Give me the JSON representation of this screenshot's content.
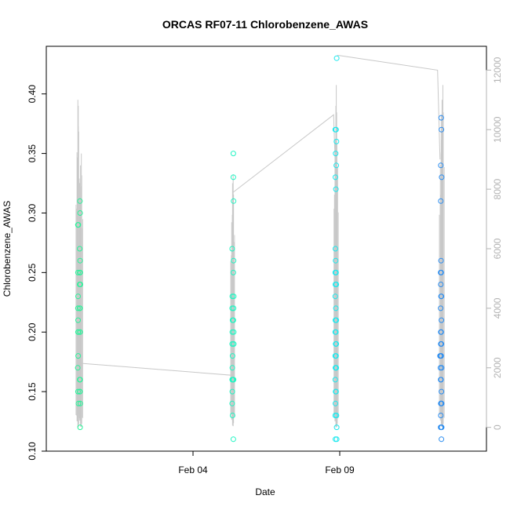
{
  "chart_data": {
    "type": "scatter",
    "title": "ORCAS RF07-11 Chlorobenzene_AWAS",
    "xlabel": "Date",
    "ylabel": "Chlorobenzene_AWAS",
    "x_type": "date",
    "xlim": [
      "2016-01-30",
      "2016-02-14"
    ],
    "x_ticks": [
      {
        "value": "2016-02-04",
        "label": "Feb 04"
      },
      {
        "value": "2016-02-09",
        "label": "Feb 09"
      }
    ],
    "ylim": [
      0.1,
      0.44
    ],
    "y_ticks": [
      {
        "value": 0.1,
        "label": "0.10"
      },
      {
        "value": 0.15,
        "label": "0.15"
      },
      {
        "value": 0.2,
        "label": "0.20"
      },
      {
        "value": 0.25,
        "label": "0.25"
      },
      {
        "value": 0.3,
        "label": "0.30"
      },
      {
        "value": 0.35,
        "label": "0.35"
      },
      {
        "value": 0.4,
        "label": "0.40"
      }
    ],
    "y2lim": [
      -800,
      12800
    ],
    "y2_ticks": [
      {
        "value": 0,
        "label": "0"
      },
      {
        "value": 2000,
        "label": "2000"
      },
      {
        "value": 4000,
        "label": "4000"
      },
      {
        "value": 6000,
        "label": "6000"
      },
      {
        "value": 8000,
        "label": "8000"
      },
      {
        "value": 10000,
        "label": "10000"
      },
      {
        "value": 12000,
        "label": "12000"
      }
    ],
    "grid": false,
    "colors": {
      "flight_track": "#c8c8c8",
      "axis": "#000000",
      "right_axis": "#b3b3b3"
    },
    "flights": [
      {
        "color": "#29f39a",
        "altitude_spikes": [
          [
            "2016-01-31T01:50",
            11000,
            12
          ],
          [
            "2016-01-31T02:10",
            10800,
            0
          ],
          [
            "2016-01-31T04:00",
            8800,
            25
          ],
          [
            "2016-01-31T04:40",
            9200,
            15
          ]
        ],
        "altitude_track": [
          [
            "2016-01-31T05:00",
            2150
          ],
          [
            "2016-02-05T08:00",
            1750
          ],
          [
            "2016-02-05T08:20",
            1800
          ]
        ],
        "points": [
          [
            "2016-01-31T01:50",
            0.29
          ],
          [
            "2016-01-31T01:55",
            0.25
          ],
          [
            "2016-01-31T01:50",
            0.22
          ],
          [
            "2016-01-31T02:00",
            0.21
          ],
          [
            "2016-01-31T01:55",
            0.2
          ],
          [
            "2016-01-31T02:05",
            0.18
          ],
          [
            "2016-01-31T01:45",
            0.17
          ],
          [
            "2016-01-31T01:55",
            0.15
          ],
          [
            "2016-01-31T02:10",
            0.29
          ],
          [
            "2016-01-31T02:00",
            0.23
          ],
          [
            "2016-01-31T02:10",
            0.2
          ],
          [
            "2016-01-31T02:20",
            0.14
          ],
          [
            "2016-01-31T03:30",
            0.31
          ],
          [
            "2016-01-31T03:40",
            0.3
          ],
          [
            "2016-01-31T03:20",
            0.27
          ],
          [
            "2016-01-31T03:40",
            0.26
          ],
          [
            "2016-01-31T03:25",
            0.25
          ],
          [
            "2016-01-31T03:45",
            0.25
          ],
          [
            "2016-01-31T03:20",
            0.24
          ],
          [
            "2016-01-31T03:50",
            0.24
          ],
          [
            "2016-01-31T03:20",
            0.22
          ],
          [
            "2016-01-31T03:35",
            0.22
          ],
          [
            "2016-01-31T03:30",
            0.2
          ],
          [
            "2016-01-31T03:45",
            0.2
          ],
          [
            "2016-01-31T03:20",
            0.16
          ],
          [
            "2016-01-31T03:40",
            0.16
          ],
          [
            "2016-01-31T03:30",
            0.15
          ],
          [
            "2016-01-31T03:25",
            0.15
          ],
          [
            "2016-01-31T03:50",
            0.14
          ],
          [
            "2016-01-31T03:40",
            0.12
          ]
        ]
      },
      {
        "color": "#22f5c3",
        "altitude_spikes": [
          [
            "2016-02-05T08:20",
            8200,
            60
          ],
          [
            "2016-02-05T08:50",
            8500,
            40
          ]
        ],
        "altitude_track": [
          [
            "2016-02-05T09:00",
            7900
          ],
          [
            "2016-02-08T19:00",
            10500
          ],
          [
            "2016-02-08T21:00",
            8000
          ]
        ],
        "points": [
          [
            "2016-02-05T08:00",
            0.27
          ],
          [
            "2016-02-05T08:10",
            0.23
          ],
          [
            "2016-02-05T08:00",
            0.22
          ],
          [
            "2016-02-05T08:20",
            0.21
          ],
          [
            "2016-02-05T08:10",
            0.2
          ],
          [
            "2016-02-05T08:00",
            0.19
          ],
          [
            "2016-02-05T08:20",
            0.18
          ],
          [
            "2016-02-05T08:10",
            0.17
          ],
          [
            "2016-02-05T08:00",
            0.16
          ],
          [
            "2016-02-05T08:30",
            0.16
          ],
          [
            "2016-02-05T08:10",
            0.15
          ],
          [
            "2016-02-05T08:00",
            0.14
          ],
          [
            "2016-02-05T08:20",
            0.13
          ],
          [
            "2016-02-05T09:00",
            0.35
          ],
          [
            "2016-02-05T09:00",
            0.33
          ],
          [
            "2016-02-05T09:10",
            0.31
          ],
          [
            "2016-02-05T09:10",
            0.26
          ],
          [
            "2016-02-05T09:00",
            0.25
          ],
          [
            "2016-02-05T09:20",
            0.23
          ],
          [
            "2016-02-05T09:10",
            0.22
          ],
          [
            "2016-02-05T09:00",
            0.21
          ],
          [
            "2016-02-05T09:20",
            0.2
          ],
          [
            "2016-02-05T09:10",
            0.19
          ],
          [
            "2016-02-05T09:20",
            0.19
          ],
          [
            "2016-02-05T09:00",
            0.16
          ],
          [
            "2016-02-05T09:10",
            0.16
          ],
          [
            "2016-02-05T09:00",
            0.11
          ]
        ]
      },
      {
        "color": "#1ce8ee",
        "altitude_spikes": [
          [
            "2016-02-08T20:50",
            10800,
            0
          ],
          [
            "2016-02-08T21:10",
            11500,
            10
          ],
          [
            "2016-02-08T21:40",
            9500,
            20
          ]
        ],
        "altitude_track": [
          [
            "2016-02-08T22:00",
            12500
          ],
          [
            "2016-02-12T08:00",
            12000
          ],
          [
            "2016-02-12T10:00",
            9000
          ]
        ],
        "points": [
          [
            "2016-02-08T21:30",
            0.43
          ],
          [
            "2016-02-08T20:20",
            0.37
          ],
          [
            "2016-02-08T21:00",
            0.37
          ],
          [
            "2016-02-08T20:40",
            0.35
          ],
          [
            "2016-02-08T21:20",
            0.36
          ],
          [
            "2016-02-08T21:10",
            0.34
          ],
          [
            "2016-02-08T20:30",
            0.33
          ],
          [
            "2016-02-08T20:50",
            0.32
          ],
          [
            "2016-02-08T20:30",
            0.27
          ],
          [
            "2016-02-08T20:40",
            0.26
          ],
          [
            "2016-02-08T20:20",
            0.25
          ],
          [
            "2016-02-08T21:00",
            0.25
          ],
          [
            "2016-02-08T20:30",
            0.24
          ],
          [
            "2016-02-08T21:10",
            0.24
          ],
          [
            "2016-02-08T20:20",
            0.23
          ],
          [
            "2016-02-08T20:50",
            0.22
          ],
          [
            "2016-02-08T20:30",
            0.21
          ],
          [
            "2016-02-08T21:10",
            0.21
          ],
          [
            "2016-02-08T20:20",
            0.2
          ],
          [
            "2016-02-08T20:50",
            0.2
          ],
          [
            "2016-02-08T20:40",
            0.19
          ],
          [
            "2016-02-08T21:10",
            0.19
          ],
          [
            "2016-02-08T20:20",
            0.18
          ],
          [
            "2016-02-08T21:00",
            0.18
          ],
          [
            "2016-02-08T20:30",
            0.17
          ],
          [
            "2016-02-08T20:50",
            0.17
          ],
          [
            "2016-02-08T21:10",
            0.17
          ],
          [
            "2016-02-08T20:20",
            0.16
          ],
          [
            "2016-02-08T20:40",
            0.15
          ],
          [
            "2016-02-08T21:00",
            0.15
          ],
          [
            "2016-02-08T20:30",
            0.14
          ],
          [
            "2016-02-08T20:20",
            0.13
          ],
          [
            "2016-02-08T21:20",
            0.13
          ],
          [
            "2016-02-08T21:30",
            0.12
          ],
          [
            "2016-02-08T20:30",
            0.11
          ],
          [
            "2016-02-08T21:30",
            0.11
          ]
        ]
      },
      {
        "color": "#2b8df0",
        "altitude_spikes": [
          [
            "2016-02-12T11:00",
            10500,
            30
          ],
          [
            "2016-02-12T11:40",
            11000,
            15
          ],
          [
            "2016-02-12T12:20",
            11500,
            20
          ]
        ],
        "altitude_track": [],
        "points": [
          [
            "2016-02-12T11:00",
            0.38
          ],
          [
            "2016-02-12T11:10",
            0.37
          ],
          [
            "2016-02-12T10:40",
            0.34
          ],
          [
            "2016-02-12T11:20",
            0.33
          ],
          [
            "2016-02-12T10:40",
            0.31
          ],
          [
            "2016-02-12T10:50",
            0.26
          ],
          [
            "2016-02-12T10:30",
            0.25
          ],
          [
            "2016-02-12T11:00",
            0.25
          ],
          [
            "2016-02-12T10:40",
            0.24
          ],
          [
            "2016-02-12T10:50",
            0.23
          ],
          [
            "2016-02-12T11:10",
            0.23
          ],
          [
            "2016-02-12T10:30",
            0.22
          ],
          [
            "2016-02-12T11:10",
            0.21
          ],
          [
            "2016-02-12T10:40",
            0.2
          ],
          [
            "2016-02-12T10:50",
            0.2
          ],
          [
            "2016-02-12T11:00",
            0.2
          ],
          [
            "2016-02-12T10:40",
            0.19
          ],
          [
            "2016-02-12T11:10",
            0.19
          ],
          [
            "2016-02-12T10:00",
            0.18
          ],
          [
            "2016-02-12T10:40",
            0.18
          ],
          [
            "2016-02-12T11:00",
            0.18
          ],
          [
            "2016-02-12T10:20",
            0.17
          ],
          [
            "2016-02-12T11:20",
            0.17
          ],
          [
            "2016-02-12T10:30",
            0.16
          ],
          [
            "2016-02-12T10:50",
            0.16
          ],
          [
            "2016-02-12T11:10",
            0.15
          ],
          [
            "2016-02-12T10:40",
            0.14
          ],
          [
            "2016-02-12T11:00",
            0.14
          ],
          [
            "2016-02-12T11:20",
            0.14
          ],
          [
            "2016-02-12T10:40",
            0.13
          ],
          [
            "2016-02-12T10:30",
            0.12
          ],
          [
            "2016-02-12T11:10",
            0.12
          ],
          [
            "2016-02-12T11:20",
            0.12
          ],
          [
            "2016-02-12T11:10",
            0.11
          ]
        ]
      }
    ]
  }
}
